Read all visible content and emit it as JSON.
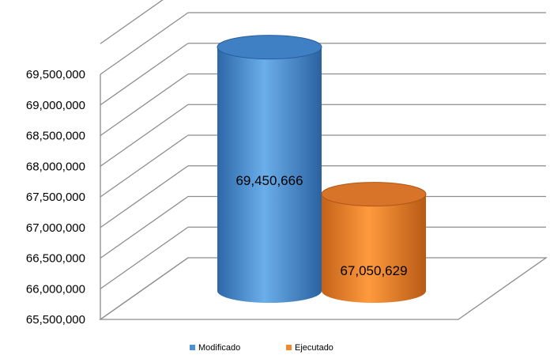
{
  "chart_data": {
    "type": "bar",
    "style": "3d-cylinder",
    "categories": [
      "Modificado",
      "Ejecutado"
    ],
    "values": [
      69450666,
      67050629
    ],
    "value_labels": [
      "69,450,666",
      "67,050,629"
    ],
    "ylim": [
      65500000,
      69500000
    ],
    "y_ticks": [
      65500000,
      66000000,
      66500000,
      67000000,
      67500000,
      68000000,
      68500000,
      69000000,
      69500000
    ],
    "y_tick_labels": [
      "65,500,000",
      "66,000,000",
      "66,500,000",
      "67,000,000",
      "67,500,000",
      "68,000,000",
      "68,500,000",
      "69,000,000",
      "69,500,000"
    ],
    "grid": true,
    "legend_position": "bottom",
    "legend": [
      {
        "name": "Modificado",
        "color": "#4A8FD8"
      },
      {
        "name": "Ejecutado",
        "color": "#F08A30"
      }
    ],
    "title": "",
    "xlabel": "",
    "ylabel": ""
  },
  "colors": {
    "grid": "#8C8C8C",
    "modificado": "#4A8FD8",
    "ejecutado": "#F08A30"
  }
}
